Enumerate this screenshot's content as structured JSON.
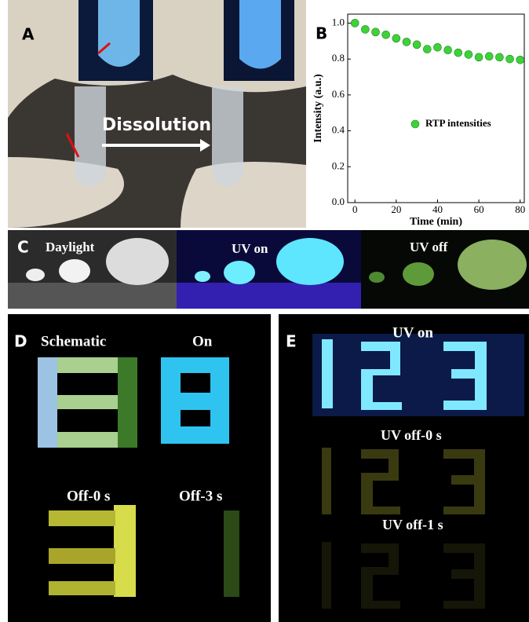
{
  "panel_a": {
    "label": "A",
    "caption": "Dissolution"
  },
  "chart_data": {
    "type": "scatter",
    "label": "B",
    "x": [
      0,
      5,
      10,
      15,
      20,
      25,
      30,
      35,
      40,
      45,
      50,
      55,
      60,
      65,
      70,
      75,
      80
    ],
    "series": [
      {
        "name": "RTP intensities",
        "color": "#3fd13a",
        "values": [
          1.0,
          0.965,
          0.95,
          0.935,
          0.915,
          0.895,
          0.88,
          0.855,
          0.865,
          0.85,
          0.835,
          0.825,
          0.81,
          0.815,
          0.81,
          0.8,
          0.795
        ]
      }
    ],
    "xlabel": "Time (min)",
    "ylabel": "Intensity (a.u.)",
    "xlim": [
      -3.5,
      82
    ],
    "ylim": [
      0,
      1.05
    ],
    "xticks": [
      0,
      20,
      40,
      60,
      80
    ],
    "yticks": [
      {
        "value": 0,
        "label": "0.0"
      },
      0.2,
      0.4,
      0.6,
      0.8,
      {
        "value": 1,
        "label": "1.0"
      }
    ],
    "legend": "center-right",
    "grid": false
  },
  "panel_c": {
    "label": "C",
    "captions": [
      "Daylight",
      "UV on",
      "UV off"
    ]
  },
  "panel_d": {
    "label": "D",
    "captions": [
      "Schematic",
      "On",
      "Off-0 s",
      "Off-3 s"
    ]
  },
  "panel_e": {
    "label": "E",
    "captions": [
      "UV on",
      "UV off-0 s",
      "UV off-1 s"
    ]
  }
}
